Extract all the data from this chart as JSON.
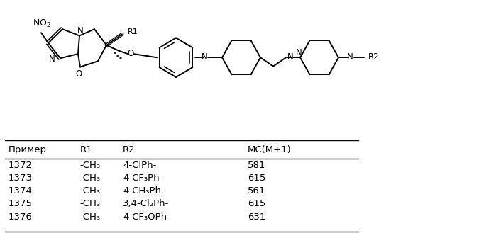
{
  "background_color": "#ffffff",
  "figsize": [
    6.99,
    3.29
  ],
  "dpi": 100,
  "table_header": [
    "Пример",
    "R1",
    "R2",
    "MC(M+1)"
  ],
  "table_rows": [
    [
      "1372",
      "-CH₃",
      "4-ClPh-",
      "581"
    ],
    [
      "1373",
      "-CH₃",
      "4-CF₃Ph-",
      "615"
    ],
    [
      "1374",
      "-CH₃",
      "4-CH₃Ph-",
      "561"
    ],
    [
      "1375",
      "-CH₃",
      "3,4-Cl₂Ph-",
      "615"
    ],
    [
      "1376",
      "-CH₃",
      "4-CF₃OPh-",
      "631"
    ]
  ]
}
